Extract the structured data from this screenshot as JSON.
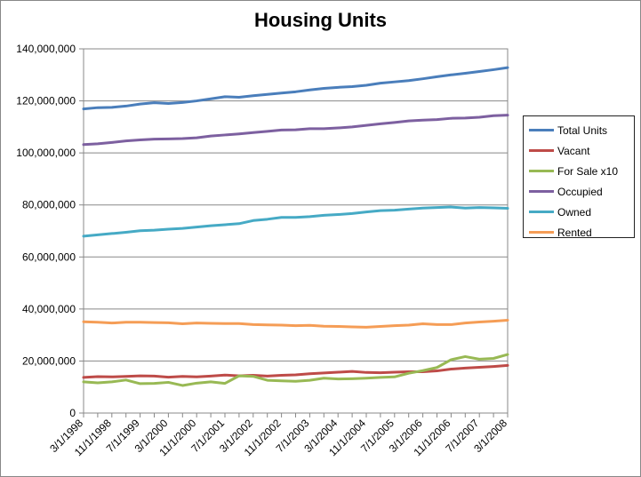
{
  "chart_data": {
    "type": "line",
    "title": "Housing Units",
    "xlabel": "",
    "ylabel": "",
    "ylim": [
      0,
      140000000
    ],
    "yticks": [
      0,
      20000000,
      40000000,
      60000000,
      80000000,
      100000000,
      120000000,
      140000000
    ],
    "ytick_labels": [
      "0",
      "20,000,000",
      "40,000,000",
      "60,000,000",
      "80,000,000",
      "100,000,000",
      "120,000,000",
      "140,000,000"
    ],
    "x_dates": [
      "3/1/1998",
      "7/1/1998",
      "11/1/1998",
      "3/1/1999",
      "7/1/1999",
      "11/1/1999",
      "3/1/2000",
      "7/1/2000",
      "11/1/2000",
      "3/1/2001",
      "7/1/2001",
      "11/1/2001",
      "3/1/2002",
      "7/1/2002",
      "11/1/2002",
      "3/1/2003",
      "7/1/2003",
      "11/1/2003",
      "3/1/2004",
      "7/1/2004",
      "11/1/2004",
      "3/1/2005",
      "7/1/2005",
      "11/1/2005",
      "3/1/2006",
      "7/1/2006",
      "11/1/2006",
      "3/1/2007",
      "7/1/2007",
      "11/1/2007",
      "3/1/2008"
    ],
    "xtick_labels": [
      "3/1/1998",
      "11/1/1998",
      "7/1/1999",
      "3/1/2000",
      "11/1/2000",
      "7/1/2001",
      "3/1/2002",
      "11/1/2002",
      "7/1/2003",
      "3/1/2004",
      "11/1/2004",
      "7/1/2005",
      "3/1/2006",
      "11/1/2006",
      "7/1/2007",
      "3/1/2008"
    ],
    "grid": "horizontal",
    "legend_position": "right",
    "series": [
      {
        "name": "Total Units",
        "color": "#4A7EBB",
        "values": [
          116900000,
          117400000,
          117500000,
          118000000,
          118800000,
          119300000,
          119000000,
          119400000,
          120000000,
          120800000,
          121600000,
          121400000,
          122000000,
          122500000,
          123000000,
          123500000,
          124200000,
          124800000,
          125200000,
          125500000,
          126000000,
          126800000,
          127300000,
          127800000,
          128500000,
          129300000,
          130000000,
          130600000,
          131300000,
          132000000,
          132800000
        ]
      },
      {
        "name": "Vacant",
        "color": "#BE4B48",
        "values": [
          13700000,
          14000000,
          13900000,
          14100000,
          14300000,
          14200000,
          13800000,
          14100000,
          13900000,
          14200000,
          14600000,
          14300000,
          14500000,
          14200000,
          14500000,
          14700000,
          15100000,
          15400000,
          15700000,
          16000000,
          15600000,
          15500000,
          15700000,
          15900000,
          15900000,
          16200000,
          16900000,
          17300000,
          17600000,
          17900000,
          18300000
        ]
      },
      {
        "name": "For Sale x10",
        "color": "#98B954",
        "values": [
          12000000,
          11600000,
          12000000,
          12700000,
          11300000,
          11400000,
          11800000,
          10600000,
          11500000,
          12000000,
          11400000,
          14300000,
          14100000,
          12600000,
          12400000,
          12200000,
          12600000,
          13400000,
          13100000,
          13200000,
          13400000,
          13700000,
          13900000,
          15300000,
          16300000,
          17500000,
          20500000,
          21700000,
          20700000,
          21000000,
          22500000
        ]
      },
      {
        "name": "Occupied",
        "color": "#7D60A0",
        "values": [
          103200000,
          103500000,
          104000000,
          104600000,
          105000000,
          105300000,
          105400000,
          105500000,
          105800000,
          106500000,
          106900000,
          107300000,
          107800000,
          108300000,
          108800000,
          108900000,
          109300000,
          109300000,
          109600000,
          110000000,
          110600000,
          111200000,
          111700000,
          112300000,
          112600000,
          112800000,
          113300000,
          113400000,
          113700000,
          114300000,
          114500000
        ]
      },
      {
        "name": "Owned",
        "color": "#46AAC5",
        "values": [
          68000000,
          68500000,
          69000000,
          69500000,
          70100000,
          70300000,
          70700000,
          71000000,
          71500000,
          72000000,
          72400000,
          72800000,
          74000000,
          74500000,
          75200000,
          75200000,
          75500000,
          76000000,
          76300000,
          76700000,
          77300000,
          77800000,
          78000000,
          78400000,
          78800000,
          79000000,
          79200000,
          78800000,
          79000000,
          78900000,
          78700000
        ]
      },
      {
        "name": "Rented",
        "color": "#F59D56",
        "values": [
          35100000,
          34900000,
          34600000,
          34900000,
          34900000,
          34800000,
          34700000,
          34300000,
          34600000,
          34500000,
          34400000,
          34400000,
          34000000,
          33900000,
          33800000,
          33600000,
          33700000,
          33400000,
          33300000,
          33100000,
          33000000,
          33300000,
          33600000,
          33800000,
          34300000,
          34000000,
          34000000,
          34600000,
          35000000,
          35300000,
          35700000
        ]
      }
    ]
  }
}
